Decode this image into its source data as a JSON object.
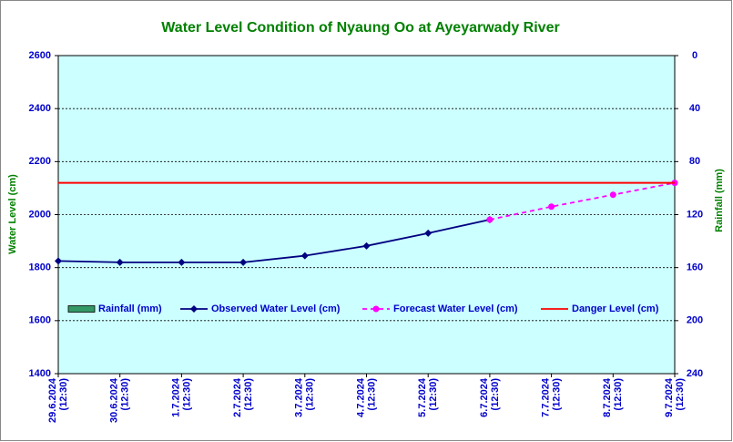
{
  "chart_data": {
    "type": "line",
    "title": "Water Level Condition of Nyaung Oo at Ayeyarwady River",
    "y_label": "Water Level (cm)",
    "y2_label": "Rainfall (mm)",
    "categories": [
      [
        "29.6.2024",
        "(12:30)"
      ],
      [
        "30.6.2024",
        "(12:30)"
      ],
      [
        "1.7.2024",
        "(12:30)"
      ],
      [
        "2.7.2024",
        "(12:30)"
      ],
      [
        "3.7.2024",
        "(12:30)"
      ],
      [
        "4.7.2024",
        "(12:30)"
      ],
      [
        "5.7.2024",
        "(12:30)"
      ],
      [
        "6.7.2024",
        "(12:30)"
      ],
      [
        "7.7.2024",
        "(12:30)"
      ],
      [
        "8.7.2024",
        "(12:30)"
      ],
      [
        "9.7.2024",
        "(12:30)"
      ]
    ],
    "series": [
      {
        "name": "Rainfall (mm)",
        "color": "#339966",
        "kind": "bar",
        "axis": "y2",
        "values": [
          null,
          null,
          null,
          null,
          null,
          null,
          null,
          null,
          null,
          null,
          null
        ]
      },
      {
        "name": "Observed Water Level (cm)",
        "color": "#000080",
        "kind": "line",
        "values": [
          1825,
          1820,
          1820,
          1820,
          1845,
          1882,
          1930,
          1981,
          null,
          null,
          null
        ]
      },
      {
        "name": "Forecast Water Level (cm)",
        "color": "#ff00ff",
        "kind": "dashed",
        "values": [
          null,
          null,
          null,
          null,
          null,
          null,
          null,
          1981,
          2030,
          2075,
          2120
        ]
      },
      {
        "name": "Danger Level (cm)",
        "color": "#ff0000",
        "kind": "plain",
        "values": [
          2120,
          2120,
          2120,
          2120,
          2120,
          2120,
          2120,
          2120,
          2120,
          2120,
          2120
        ]
      }
    ],
    "ylim": [
      1400,
      2600
    ],
    "yticks": [
      1400,
      1600,
      1800,
      2000,
      2200,
      2400,
      2600
    ],
    "y2lim": [
      0,
      240
    ],
    "y2ticks": [
      0,
      40,
      80,
      120,
      160,
      200,
      240
    ],
    "y2_inverted": true,
    "grid": true
  }
}
